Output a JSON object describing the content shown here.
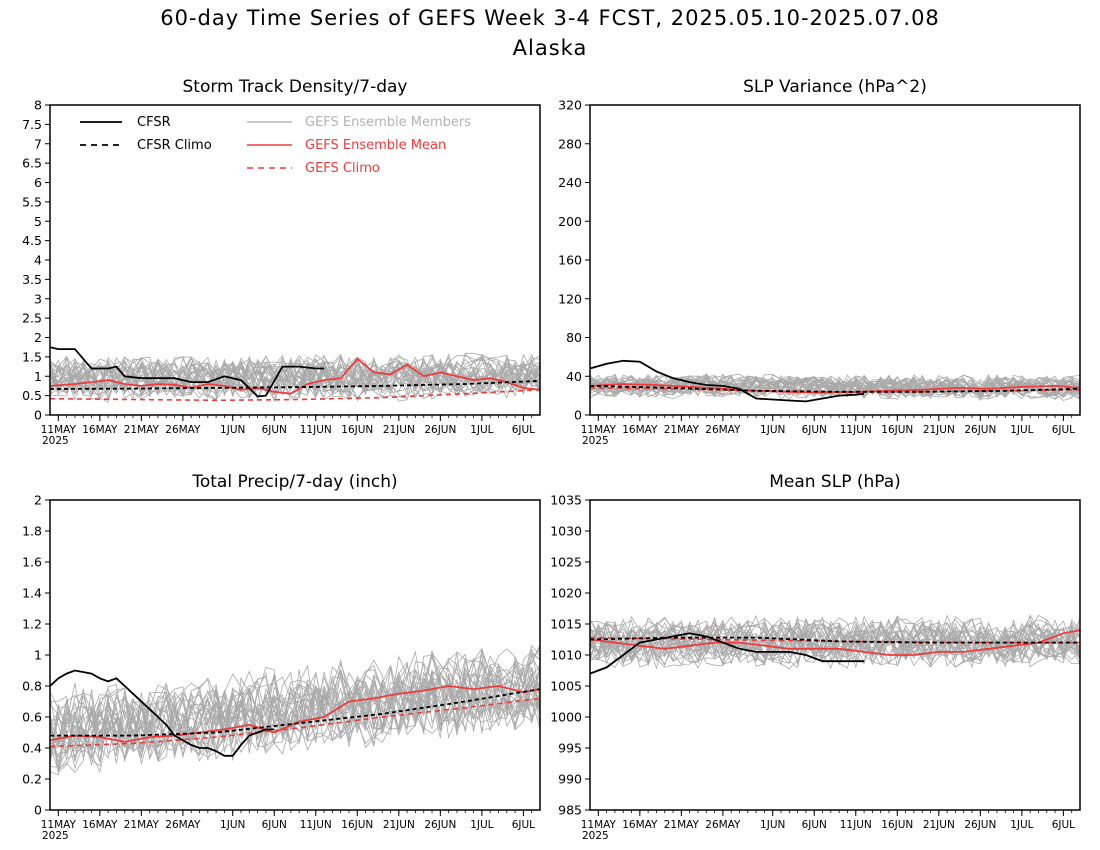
{
  "figure": {
    "title": "60-day Time Series of GEFS Week 3-4 FCST, 2025.05.10-2025.07.08",
    "subtitle": "Alaska"
  },
  "x_axis": {
    "tick_labels": [
      "11MAY",
      "16MAY",
      "21MAY",
      "26MAY",
      "1JUN",
      "6JUN",
      "11JUN",
      "16JUN",
      "21JUN",
      "26JUN",
      "1JUL",
      "6JUL"
    ],
    "tick_days": [
      1,
      6,
      11,
      16,
      22,
      27,
      32,
      37,
      42,
      47,
      52,
      57
    ],
    "year_label": "2025",
    "range_days": [
      0,
      59
    ]
  },
  "colors": {
    "cfsr": "#000000",
    "members": "#a9a9a9",
    "ens_mean": "#ee3b3b",
    "legend_members_text": "#b3b3b3"
  },
  "legend": {
    "cfsr": "CFSR",
    "cfsr_climo": "CFSR Climo",
    "members": "GEFS Ensemble Members",
    "ens_mean": "GEFS Ensemble Mean",
    "gefs_climo": "GEFS Climo"
  },
  "chart_data": [
    {
      "type": "line",
      "title": "Storm Track Density/7-day",
      "ylim": [
        0,
        8
      ],
      "yticks": [
        "0",
        "0.5",
        "1",
        "1.5",
        "2",
        "2.5",
        "3",
        "3.5",
        "4",
        "4.5",
        "5",
        "5.5",
        "6",
        "6.5",
        "7",
        "7.5",
        "8"
      ],
      "members": {
        "count": 30,
        "baseline": [
          0.9,
          1.0
        ],
        "spread": 0.45
      },
      "series": [
        {
          "name": "CFSR",
          "x": [
            0,
            1,
            3,
            5,
            7,
            8,
            9,
            11,
            13,
            15,
            17,
            19,
            21,
            22,
            23,
            25,
            26,
            28,
            30,
            32,
            33
          ],
          "values": [
            1.75,
            1.7,
            1.7,
            1.2,
            1.2,
            1.25,
            1.0,
            0.95,
            0.95,
            0.95,
            0.85,
            0.85,
            1.0,
            0.95,
            0.9,
            0.48,
            0.5,
            1.25,
            1.25,
            1.2,
            1.2
          ]
        },
        {
          "name": "CFSR Climo",
          "x": [
            0,
            10,
            20,
            30,
            40,
            50,
            59
          ],
          "values": [
            0.67,
            0.68,
            0.7,
            0.72,
            0.75,
            0.8,
            0.88
          ]
        },
        {
          "name": "GEFS Ensemble Mean",
          "x": [
            0,
            3,
            5,
            7,
            9,
            11,
            13,
            15,
            17,
            19,
            21,
            23,
            25,
            27,
            29,
            31,
            33,
            35,
            37,
            39,
            41,
            43,
            45,
            47,
            49,
            51,
            53,
            55,
            57,
            59
          ],
          "values": [
            0.75,
            0.8,
            0.85,
            0.9,
            0.8,
            0.75,
            0.8,
            0.78,
            0.7,
            0.8,
            0.75,
            0.65,
            0.7,
            0.6,
            0.55,
            0.8,
            0.9,
            0.95,
            1.45,
            1.1,
            1.05,
            1.3,
            1.0,
            1.1,
            1.0,
            0.9,
            0.95,
            0.85,
            0.7,
            0.65
          ]
        },
        {
          "name": "GEFS Climo",
          "x": [
            0,
            10,
            20,
            30,
            40,
            50,
            59
          ],
          "values": [
            0.42,
            0.4,
            0.38,
            0.4,
            0.45,
            0.55,
            0.65
          ]
        }
      ]
    },
    {
      "type": "line",
      "title": "SLP Variance (hPa^2)",
      "ylim": [
        0,
        320
      ],
      "yticks": [
        "0",
        "40",
        "80",
        "120",
        "160",
        "200",
        "240",
        "280",
        "320"
      ],
      "members": {
        "count": 30,
        "baseline": [
          30,
          28
        ],
        "spread": 10
      },
      "series": [
        {
          "name": "CFSR",
          "x": [
            0,
            2,
            4,
            6,
            8,
            10,
            12,
            14,
            16,
            18,
            20,
            22,
            24,
            26,
            28,
            30,
            32,
            33
          ],
          "values": [
            48,
            53,
            56,
            55,
            45,
            38,
            34,
            31,
            30,
            27,
            17,
            16,
            15,
            14,
            17,
            20,
            21,
            22
          ]
        },
        {
          "name": "CFSR Climo",
          "x": [
            0,
            10,
            20,
            30,
            40,
            50,
            59
          ],
          "values": [
            30,
            28,
            25,
            24,
            24,
            25,
            27
          ]
        },
        {
          "name": "GEFS Ensemble Mean",
          "x": [
            0,
            4,
            8,
            12,
            16,
            20,
            24,
            28,
            32,
            36,
            40,
            44,
            48,
            52,
            56,
            59
          ],
          "values": [
            30,
            32,
            31,
            29,
            27,
            25,
            24,
            23,
            24,
            25,
            26,
            28,
            27,
            29,
            30,
            28
          ]
        },
        {
          "name": "GEFS Climo",
          "x": [
            0,
            10,
            20,
            30,
            40,
            50,
            59
          ],
          "values": [
            28,
            27,
            25,
            24,
            24,
            25,
            26
          ]
        }
      ]
    },
    {
      "type": "line",
      "title": "Total Precip/7-day (inch)",
      "ylim": [
        0,
        2
      ],
      "yticks": [
        "0",
        "0.2",
        "0.4",
        "0.6",
        "0.8",
        "1",
        "1.2",
        "1.4",
        "1.6",
        "1.8",
        "2"
      ],
      "members": {
        "count": 30,
        "baseline": [
          0.5,
          0.8
        ],
        "spread": 0.22
      },
      "series": [
        {
          "name": "CFSR",
          "x": [
            0,
            1,
            2,
            3,
            5,
            6,
            7,
            8,
            10,
            12,
            13,
            14,
            15,
            16,
            17,
            18,
            19,
            20,
            21,
            22,
            23,
            24,
            25,
            26,
            27
          ],
          "values": [
            0.8,
            0.85,
            0.88,
            0.9,
            0.88,
            0.85,
            0.83,
            0.85,
            0.75,
            0.65,
            0.6,
            0.55,
            0.48,
            0.45,
            0.42,
            0.4,
            0.4,
            0.38,
            0.35,
            0.35,
            0.42,
            0.48,
            0.5,
            0.52,
            0.52
          ]
        },
        {
          "name": "CFSR Climo",
          "x": [
            0,
            10,
            20,
            30,
            40,
            50,
            59
          ],
          "values": [
            0.48,
            0.48,
            0.5,
            0.56,
            0.62,
            0.7,
            0.78
          ]
        },
        {
          "name": "GEFS Ensemble Mean",
          "x": [
            0,
            3,
            6,
            9,
            12,
            15,
            18,
            21,
            24,
            27,
            30,
            33,
            36,
            39,
            42,
            45,
            48,
            51,
            54,
            57,
            59
          ],
          "values": [
            0.45,
            0.48,
            0.47,
            0.44,
            0.47,
            0.48,
            0.5,
            0.52,
            0.55,
            0.5,
            0.57,
            0.6,
            0.7,
            0.72,
            0.75,
            0.77,
            0.8,
            0.78,
            0.8,
            0.76,
            0.78
          ]
        },
        {
          "name": "GEFS Climo",
          "x": [
            0,
            10,
            20,
            30,
            40,
            50,
            59
          ],
          "values": [
            0.41,
            0.43,
            0.47,
            0.53,
            0.6,
            0.66,
            0.72
          ]
        }
      ]
    },
    {
      "type": "line",
      "title": "Mean SLP (hPa)",
      "ylim": [
        985,
        1035
      ],
      "yticks": [
        "985",
        "990",
        "995",
        "1000",
        "1005",
        "1010",
        "1015",
        "1020",
        "1025",
        "1030",
        "1035"
      ],
      "members": {
        "count": 30,
        "baseline": [
          1012,
          1012
        ],
        "spread": 3.2
      },
      "series": [
        {
          "name": "CFSR",
          "x": [
            0,
            2,
            4,
            6,
            8,
            10,
            12,
            14,
            16,
            18,
            20,
            22,
            24,
            26,
            28,
            30,
            32,
            33
          ],
          "values": [
            1007,
            1008,
            1010,
            1012,
            1012.5,
            1013,
            1013.5,
            1013,
            1012,
            1011,
            1010.5,
            1010.5,
            1010.5,
            1010,
            1009,
            1009,
            1009,
            1009
          ]
        },
        {
          "name": "CFSR Climo",
          "x": [
            0,
            10,
            20,
            30,
            40,
            50,
            59
          ],
          "values": [
            1012.5,
            1012.8,
            1012.8,
            1012.2,
            1012,
            1012,
            1012
          ]
        },
        {
          "name": "GEFS Ensemble Mean",
          "x": [
            0,
            3,
            6,
            9,
            12,
            15,
            18,
            21,
            24,
            27,
            30,
            33,
            36,
            39,
            42,
            45,
            48,
            51,
            54,
            57,
            59
          ],
          "values": [
            1012.5,
            1012,
            1011.5,
            1011,
            1011.5,
            1012,
            1012,
            1011.5,
            1011,
            1011,
            1011,
            1010.5,
            1010,
            1010,
            1010.5,
            1010.5,
            1011,
            1011.5,
            1012,
            1013.5,
            1014
          ]
        },
        {
          "name": "GEFS Climo",
          "x": [
            0,
            10,
            20,
            30,
            40,
            50,
            59
          ],
          "values": [
            1012.8,
            1012.6,
            1012.4,
            1012.2,
            1012.1,
            1012,
            1012
          ]
        }
      ]
    }
  ]
}
